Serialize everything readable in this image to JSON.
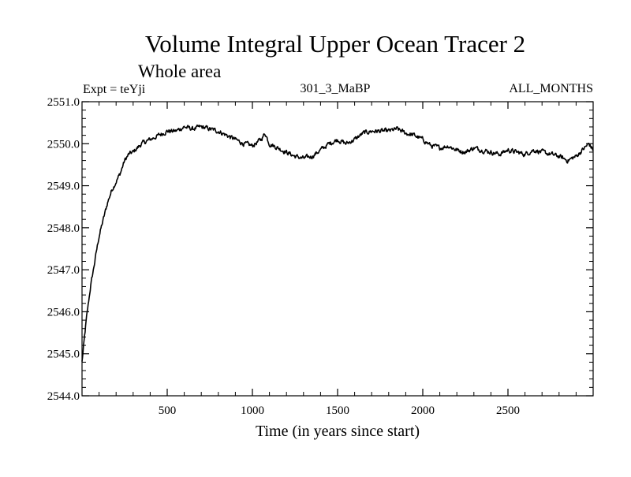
{
  "chart_data": {
    "type": "line",
    "title": "Volume Integral Upper Ocean Tracer 2",
    "subtitle": "Whole area",
    "expt_label": "Expt = teYji",
    "run_label": "301_3_MaBP",
    "period_label": "ALL_MONTHS",
    "xlabel": "Time (in years since start)",
    "ylabel": "",
    "xlim": [
      0,
      3000
    ],
    "ylim": [
      2544.0,
      2551.0
    ],
    "x_ticks": [
      500,
      1000,
      1500,
      2000,
      2500
    ],
    "x_tick_labels": [
      "500",
      "1000",
      "1500",
      "2000",
      "2500"
    ],
    "y_ticks": [
      2544.0,
      2545.0,
      2546.0,
      2547.0,
      2548.0,
      2549.0,
      2550.0,
      2551.0
    ],
    "y_tick_labels": [
      "2544.0",
      "2545.0",
      "2546.0",
      "2547.0",
      "2548.0",
      "2549.0",
      "2550.0",
      "2551.0"
    ],
    "line_color": "#000000",
    "series": [
      {
        "name": "Tracer 2",
        "x": [
          0,
          25,
          50,
          75,
          100,
          125,
          150,
          175,
          200,
          225,
          250,
          275,
          300,
          350,
          400,
          450,
          500,
          550,
          600,
          650,
          700,
          750,
          800,
          850,
          900,
          950,
          1000,
          1050,
          1075,
          1100,
          1150,
          1200,
          1250,
          1300,
          1350,
          1400,
          1450,
          1500,
          1550,
          1600,
          1650,
          1700,
          1750,
          1800,
          1850,
          1900,
          1950,
          2000,
          2050,
          2100,
          2150,
          2200,
          2250,
          2300,
          2350,
          2400,
          2450,
          2500,
          2550,
          2600,
          2650,
          2700,
          2750,
          2800,
          2850,
          2900,
          2950,
          2975,
          3000
        ],
        "values": [
          2544.8,
          2545.8,
          2546.6,
          2547.2,
          2547.8,
          2548.2,
          2548.6,
          2548.9,
          2549.1,
          2549.3,
          2549.6,
          2549.75,
          2549.8,
          2550.0,
          2550.1,
          2550.2,
          2550.3,
          2550.3,
          2550.4,
          2550.35,
          2550.4,
          2550.35,
          2550.3,
          2550.2,
          2550.1,
          2550.0,
          2549.95,
          2550.1,
          2550.25,
          2550.0,
          2549.9,
          2549.8,
          2549.7,
          2549.65,
          2549.7,
          2549.85,
          2550.0,
          2550.1,
          2550.0,
          2550.1,
          2550.25,
          2550.3,
          2550.3,
          2550.3,
          2550.35,
          2550.25,
          2550.2,
          2550.1,
          2549.95,
          2549.9,
          2549.95,
          2549.85,
          2549.8,
          2549.9,
          2549.85,
          2549.8,
          2549.75,
          2549.85,
          2549.8,
          2549.75,
          2549.85,
          2549.8,
          2549.75,
          2549.7,
          2549.6,
          2549.7,
          2549.9,
          2550.0,
          2549.85
        ]
      }
    ]
  }
}
